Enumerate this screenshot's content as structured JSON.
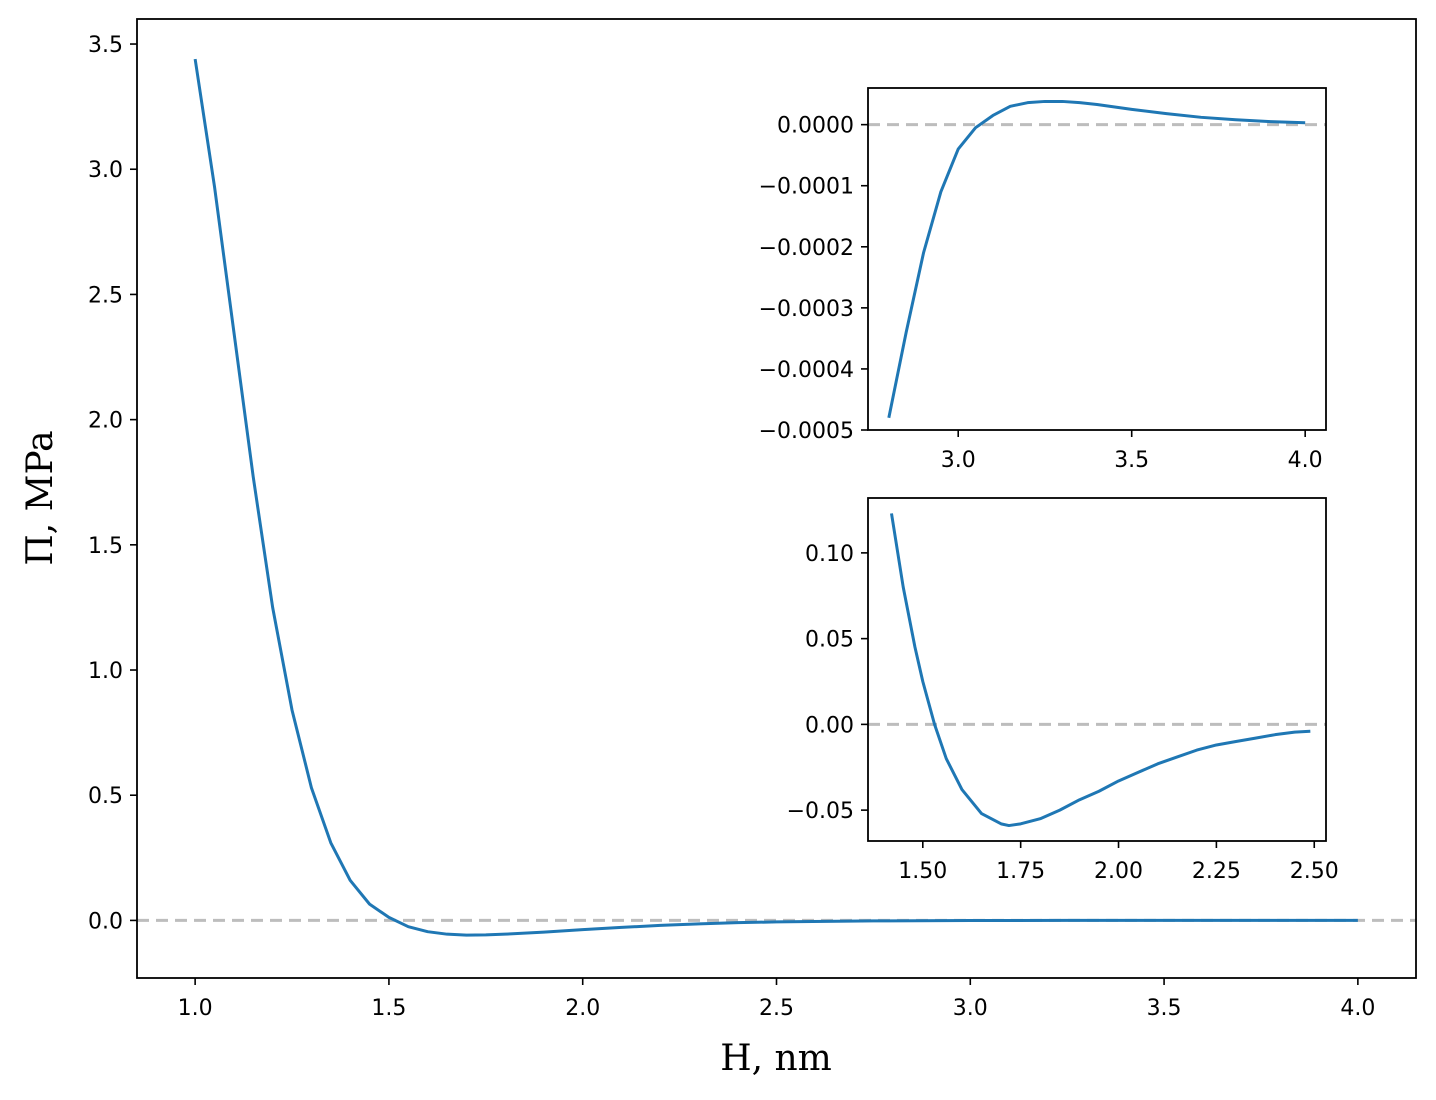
{
  "colors": {
    "series": "#1f77b4",
    "reference_line": "#bdbdbd"
  },
  "chart_data": [
    {
      "id": "main",
      "type": "line",
      "xlabel": "H, nm",
      "ylabel": "Π, MPa",
      "xlim": [
        0.85,
        4.15
      ],
      "ylim": [
        -0.23,
        3.6
      ],
      "xticks": [
        1.0,
        1.5,
        2.0,
        2.5,
        3.0,
        3.5,
        4.0
      ],
      "xtick_labels": [
        "1.0",
        "1.5",
        "2.0",
        "2.5",
        "3.0",
        "3.5",
        "4.0"
      ],
      "yticks": [
        0.0,
        0.5,
        1.0,
        1.5,
        2.0,
        2.5,
        3.0,
        3.5
      ],
      "ytick_labels": [
        "0.0",
        "0.5",
        "1.0",
        "1.5",
        "2.0",
        "2.5",
        "3.0",
        "3.5"
      ],
      "reference_line": {
        "y": 0,
        "style": "dashed"
      },
      "series": [
        {
          "x": [
            1.0,
            1.05,
            1.1,
            1.15,
            1.2,
            1.25,
            1.3,
            1.35,
            1.4,
            1.45,
            1.5,
            1.55,
            1.6,
            1.65,
            1.7,
            1.75,
            1.8,
            1.9,
            2.0,
            2.1,
            2.2,
            2.3,
            2.4,
            2.5,
            2.75,
            3.0,
            3.25,
            3.5,
            3.75,
            4.0
          ],
          "y": [
            3.44,
            2.93,
            2.35,
            1.77,
            1.25,
            0.84,
            0.53,
            0.31,
            0.16,
            0.065,
            0.012,
            -0.025,
            -0.045,
            -0.055,
            -0.059,
            -0.058,
            -0.055,
            -0.047,
            -0.037,
            -0.028,
            -0.02,
            -0.014,
            -0.009,
            -0.006,
            -0.002,
            -0.0003,
            4e-05,
            3e-05,
            1e-05,
            0.0
          ]
        }
      ]
    },
    {
      "id": "inset-top",
      "type": "line",
      "xlim": [
        2.74,
        4.06
      ],
      "ylim": [
        -0.0005,
        6e-05
      ],
      "xticks": [
        3.0,
        3.5,
        4.0
      ],
      "xtick_labels": [
        "3.0",
        "3.5",
        "4.0"
      ],
      "yticks": [
        0.0,
        -0.0001,
        -0.0002,
        -0.0003,
        -0.0004,
        -0.0005
      ],
      "ytick_labels": [
        "0.0000",
        "−0.0001",
        "−0.0002",
        "−0.0003",
        "−0.0004",
        "−0.0005"
      ],
      "reference_line": {
        "y": 0,
        "style": "dashed"
      },
      "series": [
        {
          "x": [
            2.8,
            2.85,
            2.9,
            2.95,
            3.0,
            3.05,
            3.1,
            3.15,
            3.2,
            3.25,
            3.3,
            3.35,
            3.4,
            3.5,
            3.6,
            3.7,
            3.8,
            3.9,
            4.0
          ],
          "y": [
            -0.00048,
            -0.00034,
            -0.00021,
            -0.00011,
            -4e-05,
            -5e-06,
            1.5e-05,
            3e-05,
            3.6e-05,
            3.8e-05,
            3.8e-05,
            3.6e-05,
            3.3e-05,
            2.5e-05,
            1.8e-05,
            1.2e-05,
            8e-06,
            5e-06,
            3e-06
          ]
        }
      ]
    },
    {
      "id": "inset-bottom",
      "type": "line",
      "xlim": [
        1.36,
        2.53
      ],
      "ylim": [
        -0.068,
        0.132
      ],
      "xticks": [
        1.5,
        1.75,
        2.0,
        2.25,
        2.5
      ],
      "xtick_labels": [
        "1.50",
        "1.75",
        "2.00",
        "2.25",
        "2.50"
      ],
      "yticks": [
        0.1,
        0.05,
        0.0,
        -0.05
      ],
      "ytick_labels": [
        "0.10",
        "0.05",
        "0.00",
        "−0.05"
      ],
      "reference_line": {
        "y": 0,
        "style": "dashed"
      },
      "series": [
        {
          "x": [
            1.42,
            1.45,
            1.48,
            1.5,
            1.53,
            1.56,
            1.6,
            1.65,
            1.7,
            1.72,
            1.75,
            1.8,
            1.85,
            1.9,
            1.95,
            2.0,
            2.05,
            2.1,
            2.15,
            2.2,
            2.25,
            2.3,
            2.35,
            2.4,
            2.45,
            2.49
          ],
          "y": [
            0.123,
            0.08,
            0.045,
            0.025,
            0.0,
            -0.02,
            -0.038,
            -0.052,
            -0.058,
            -0.059,
            -0.058,
            -0.055,
            -0.05,
            -0.044,
            -0.039,
            -0.033,
            -0.028,
            -0.023,
            -0.019,
            -0.015,
            -0.012,
            -0.01,
            -0.008,
            -0.006,
            -0.0045,
            -0.004
          ]
        }
      ]
    }
  ]
}
